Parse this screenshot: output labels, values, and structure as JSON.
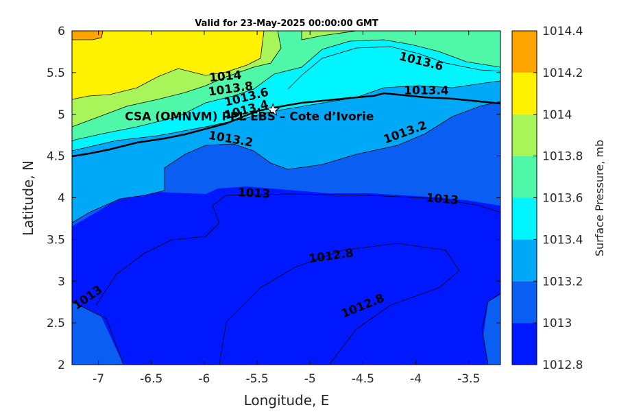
{
  "title": "Valid for 23-May-2025 00:00:00 GMT",
  "xaxis": {
    "label": "Longitude, E",
    "min": -7.25,
    "max": -3.2,
    "ticks": [
      "-7",
      "-6.5",
      "-6",
      "-5.5",
      "-5",
      "-4.5",
      "-4",
      "-3.5"
    ]
  },
  "yaxis": {
    "label": "Latitude, N",
    "min": 2,
    "max": 6,
    "ticks": [
      "2",
      "2.5",
      "3",
      "3.5",
      "4",
      "4.5",
      "5",
      "5.5",
      "6"
    ]
  },
  "colorbar": {
    "label": "Surface Pressure, mb",
    "levels": [
      "1012.8",
      "1013",
      "1013.2",
      "1013.4",
      "1013.6",
      "1013.8",
      "1014",
      "1014.2",
      "1014.4"
    ],
    "colors": [
      "#0018ff",
      "#0a5ef2",
      "#00a8f8",
      "#00f5ff",
      "#4ff8a8",
      "#a8f55a",
      "#fff200",
      "#ffa500",
      "#ff5a00"
    ]
  },
  "contour_labels": [
    {
      "text": "1013.6",
      "lon": -3.95,
      "lat": 5.63,
      "angle": 14
    },
    {
      "text": "1014",
      "lon": -5.8,
      "lat": 5.45,
      "angle": -5
    },
    {
      "text": "1013.8",
      "lon": -5.75,
      "lat": 5.3,
      "angle": -8
    },
    {
      "text": "1013.6",
      "lon": -5.6,
      "lat": 5.2,
      "angle": -14
    },
    {
      "text": "1013.4",
      "lon": -3.9,
      "lat": 5.28,
      "angle": 0
    },
    {
      "text": "1013.2",
      "lon": -5.75,
      "lat": 4.7,
      "angle": 10
    },
    {
      "text": "1013.2",
      "lon": -4.1,
      "lat": 4.78,
      "angle": -20
    },
    {
      "text": "1013",
      "lon": -5.53,
      "lat": 4.05,
      "angle": 3
    },
    {
      "text": "1013",
      "lon": -3.75,
      "lat": 3.98,
      "angle": 5
    },
    {
      "text": "1012.8",
      "lon": -4.8,
      "lat": 3.3,
      "angle": -8
    },
    {
      "text": "1012.8",
      "lon": -4.5,
      "lat": 2.7,
      "angle": -22
    },
    {
      "text": "1013",
      "lon": -7.1,
      "lat": 2.8,
      "angle": -35
    },
    {
      "text": "1013.4",
      "lon": -5.6,
      "lat": 5.05,
      "angle": -15
    }
  ],
  "site": {
    "label": "CSA (OMNVM) PPL EBS  – Cote d’Ivorie",
    "lon": -5.35,
    "lat": 5.05,
    "label_lon": -6.75,
    "label_lat": 4.93
  }
}
